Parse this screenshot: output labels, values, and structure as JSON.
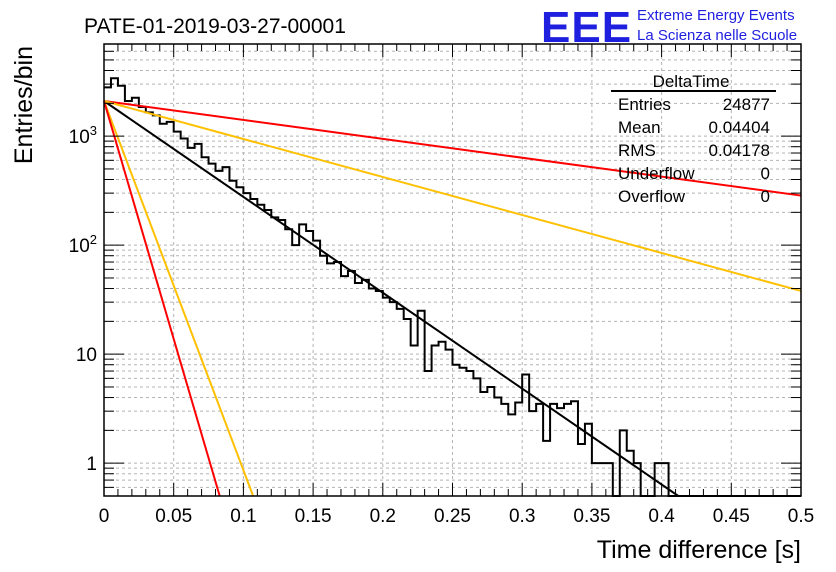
{
  "title": "PATE-01-2019-03-27-00001",
  "logo": {
    "mark": "EEE",
    "line1": "Extreme Energy Events",
    "line2": "La Scienza nelle Scuole",
    "color": "#1f1fe0"
  },
  "stats": {
    "name": "DeltaTime",
    "rows": [
      {
        "label": "Entries",
        "value": "24877"
      },
      {
        "label": "Mean",
        "value": "0.04404"
      },
      {
        "label": "RMS",
        "value": "0.04178"
      },
      {
        "label": "Underflow",
        "value": "0"
      },
      {
        "label": "Overflow",
        "value": "0"
      }
    ]
  },
  "chart_data": {
    "type": "line",
    "xlabel": "Time difference [s]",
    "ylabel": "Entries/bin",
    "xlim": [
      0,
      0.5
    ],
    "ylim": [
      0.5,
      7000
    ],
    "yscale": "log",
    "grid": true,
    "x_ticks": [
      "0",
      "0.05",
      "0.1",
      "0.15",
      "0.2",
      "0.25",
      "0.3",
      "0.35",
      "0.4",
      "0.45",
      "0.5"
    ],
    "y_ticks": [
      {
        "value": 1,
        "base": "1",
        "exp": ""
      },
      {
        "value": 10,
        "base": "10",
        "exp": ""
      },
      {
        "value": 100,
        "base": "10",
        "exp": "2"
      },
      {
        "value": 1000,
        "base": "10",
        "exp": "3"
      }
    ],
    "histogram": {
      "bin_width": 0.005,
      "color": "#000000",
      "values": [
        2800,
        3400,
        2900,
        2100,
        2250,
        1850,
        1650,
        1550,
        1300,
        1350,
        1100,
        950,
        780,
        850,
        640,
        560,
        480,
        520,
        390,
        340,
        300,
        265,
        235,
        210,
        180,
        170,
        140,
        100,
        155,
        135,
        110,
        80,
        68,
        70,
        52,
        58,
        45,
        48,
        40,
        38,
        33,
        30,
        26,
        21,
        12,
        25,
        7,
        12,
        13,
        11,
        8,
        7.5,
        7,
        6,
        4.5,
        5,
        4,
        3.5,
        2.8,
        3.6,
        6.5,
        3,
        3.5,
        1.6,
        3.5,
        3.2,
        3.5,
        3.7,
        1.5,
        2.3,
        1,
        1,
        1,
        0.5,
        2,
        1.3,
        1,
        0.5,
        0.5,
        1,
        1,
        0.5,
        0.5,
        0.5,
        0.5,
        0.5,
        0.5,
        0.5,
        0.5,
        0.5,
        0.5,
        0.5,
        0.5,
        0.5,
        0.5,
        0.5,
        0.5,
        0.5,
        0.5,
        0.5
      ]
    },
    "fits": [
      {
        "color": "#000000",
        "x": [
          0,
          0.412
        ],
        "y": [
          2100,
          0.5
        ]
      },
      {
        "color": "#ff0000",
        "x": [
          0,
          0.5
        ],
        "y": [
          2100,
          285
        ]
      },
      {
        "color": "#ffc000",
        "x": [
          0,
          0.5
        ],
        "y": [
          2100,
          38
        ]
      },
      {
        "color": "#ffc000",
        "x": [
          0,
          0.107
        ],
        "y": [
          2100,
          0.5
        ]
      },
      {
        "color": "#ff0000",
        "x": [
          0,
          0.083
        ],
        "y": [
          2100,
          0.5
        ]
      }
    ]
  }
}
